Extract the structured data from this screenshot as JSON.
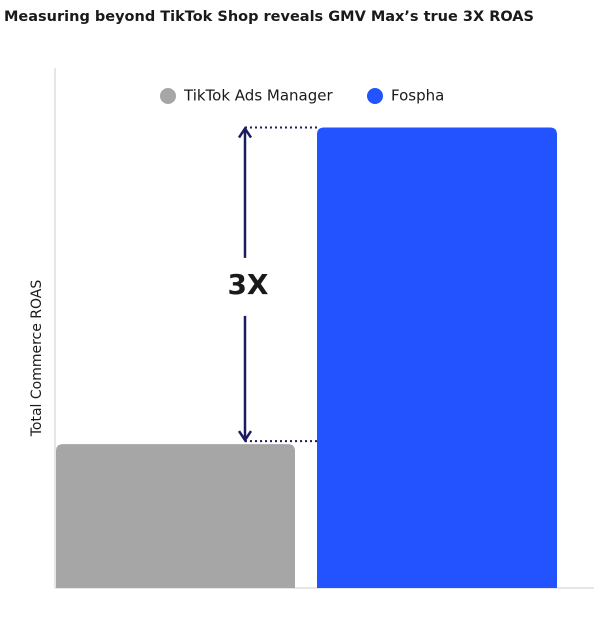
{
  "chart_data": {
    "type": "bar",
    "title": "Measuring beyond TikTok Shop reveals GMV Max’s true 3X ROAS",
    "y_label": "Total Commerce ROAS",
    "annotation": "3X",
    "series": [
      {
        "name": "TikTok Ads Manager",
        "color": "#a6a6a6",
        "values": [
          1
        ]
      },
      {
        "name": "Fospha",
        "color": "#2253ff",
        "values": [
          3.2
        ]
      }
    ],
    "ylim": [
      0,
      3.6
    ],
    "legend": "top"
  }
}
